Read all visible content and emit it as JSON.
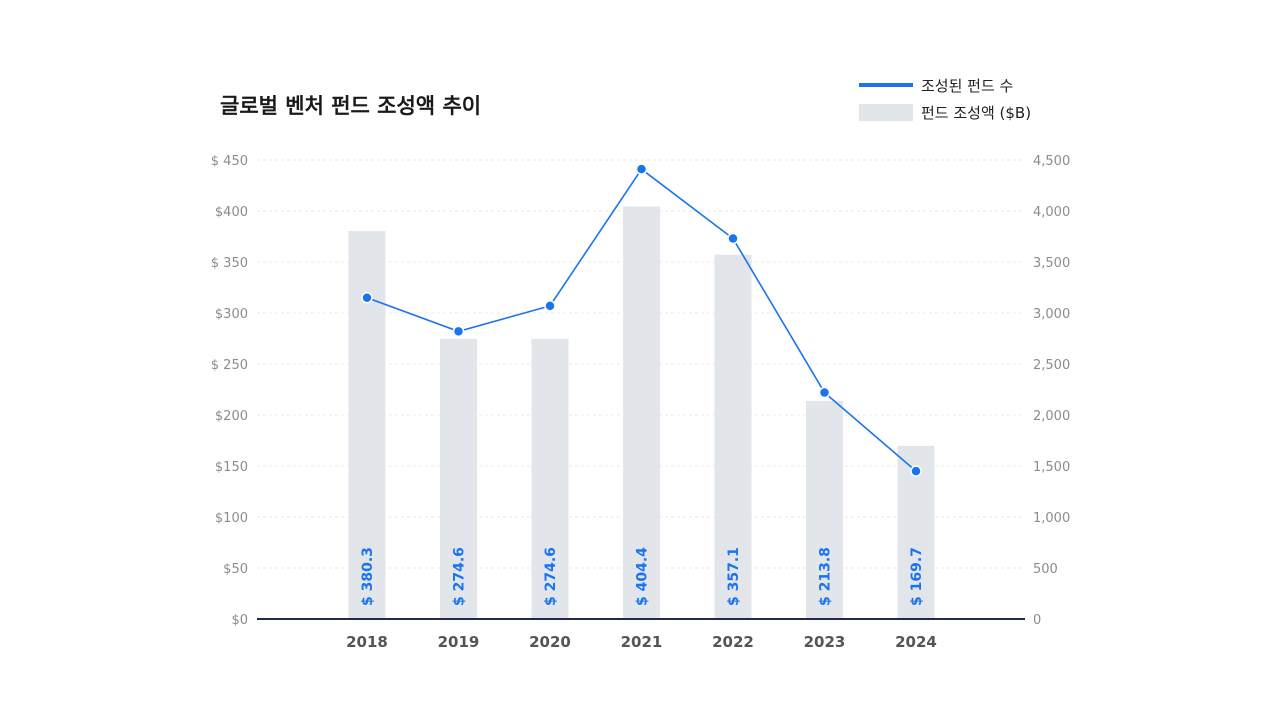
{
  "chart_data": {
    "type": "bar",
    "title": "글로벌 벤처 펀드 조성액 추이",
    "categories": [
      "2018",
      "2019",
      "2020",
      "2021",
      "2022",
      "2023",
      "2024"
    ],
    "series": [
      {
        "name": "펀드 조성액 ($B)",
        "kind": "bar",
        "axis": "left",
        "color": "#e2e5ea",
        "values": [
          380.3,
          274.6,
          274.6,
          404.4,
          357.1,
          213.8,
          169.7
        ],
        "labels": [
          "$ 380.3",
          "$ 274.6",
          "$ 274.6",
          "$ 404.4",
          "$ 357.1",
          "$ 213.8",
          "$ 169.7"
        ]
      },
      {
        "name": "조성된 펀드 수",
        "kind": "line",
        "axis": "right",
        "color": "#1a73f0",
        "values": [
          3150,
          2820,
          3070,
          4410,
          3730,
          2220,
          1450
        ]
      }
    ],
    "y_left": {
      "min": 0,
      "max": 450,
      "ticks": [
        0,
        50,
        100,
        150,
        200,
        250,
        300,
        350,
        400,
        450
      ],
      "tick_labels": [
        "$0",
        "$50",
        "$100",
        "$150",
        "$200",
        "$ 250",
        "$300",
        "$ 350",
        "$400",
        "$ 450"
      ]
    },
    "y_right": {
      "min": 0,
      "max": 4500,
      "ticks": [
        0,
        500,
        1000,
        1500,
        2000,
        2500,
        3000,
        3500,
        4000,
        4500
      ],
      "tick_labels": [
        "0",
        "500",
        "1,000",
        "1,500",
        "2,000",
        "2,500",
        "3,000",
        "3,500",
        "4,000",
        "4,500"
      ]
    },
    "grid": true,
    "legend": {
      "position": "top-right",
      "items": [
        {
          "label": "조성된 펀드 수",
          "kind": "line",
          "color": "#1a73f0"
        },
        {
          "label": "펀드 조성액 ($B)",
          "kind": "bar",
          "color": "#e2e5ea"
        }
      ]
    },
    "colors": {
      "axis": "#1f2d4a",
      "grid": "#e8e8e8"
    }
  }
}
